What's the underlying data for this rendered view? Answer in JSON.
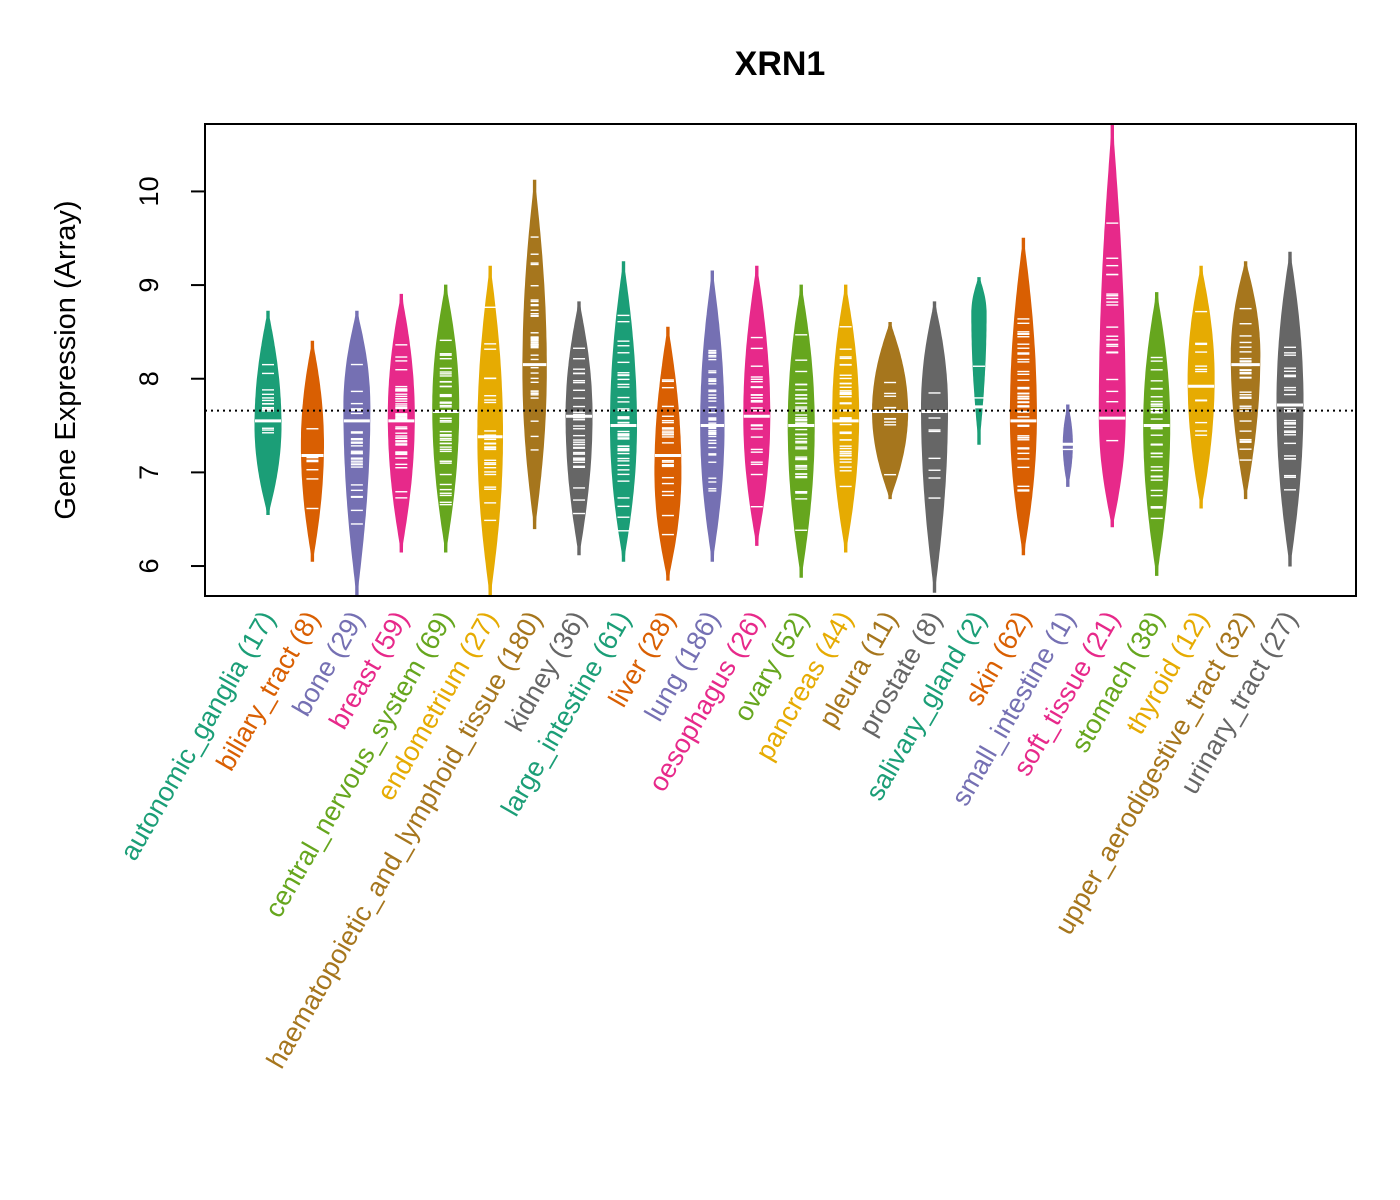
{
  "chart_data": {
    "type": "violin",
    "title": "XRN1",
    "xlabel": "",
    "ylabel": "Gene Expression (Array)",
    "ylim": [
      5.68,
      10.72
    ],
    "yticks": [
      6,
      7,
      8,
      9,
      10
    ],
    "reference_line": 7.66,
    "reference_style": "dotted",
    "grid": false,
    "legend": "none",
    "series": [
      {
        "name": "autonomic_ganglia",
        "label": "autonomic_ganglia (17)",
        "count": 17,
        "color": "#1B9E77",
        "min": 6.55,
        "max": 8.72,
        "median": 7.55,
        "peak": 7.5,
        "width": 1.0
      },
      {
        "name": "biliary_tract",
        "label": "biliary_tract (8)",
        "count": 8,
        "color": "#D95F02",
        "min": 6.05,
        "max": 8.4,
        "median": 7.18,
        "peak": 7.3,
        "width": 0.85
      },
      {
        "name": "bone",
        "label": "bone (29)",
        "count": 29,
        "color": "#7570B3",
        "min": 5.68,
        "max": 8.72,
        "median": 7.55,
        "peak": 7.7,
        "width": 1.0
      },
      {
        "name": "breast",
        "label": "breast (59)",
        "count": 59,
        "color": "#E7298A",
        "min": 6.15,
        "max": 8.9,
        "median": 7.55,
        "peak": 7.6,
        "width": 1.0
      },
      {
        "name": "central_nervous_system",
        "label": "central_nervous_system (69)",
        "count": 69,
        "color": "#66A61E",
        "min": 6.15,
        "max": 9.0,
        "median": 7.65,
        "peak": 7.7,
        "width": 1.0
      },
      {
        "name": "endometrium",
        "label": "endometrium (27)",
        "count": 27,
        "color": "#E6AB02",
        "min": 5.68,
        "max": 9.2,
        "median": 7.38,
        "peak": 7.4,
        "width": 0.95
      },
      {
        "name": "haematopoietic_and_lymphoid_tissue",
        "label": "haematopoietic_and_lymphoid_tissue (180)",
        "count": 180,
        "color": "#A6761D",
        "min": 6.4,
        "max": 10.12,
        "median": 8.15,
        "peak": 8.1,
        "width": 0.9
      },
      {
        "name": "kidney",
        "label": "kidney (36)",
        "count": 36,
        "color": "#666666",
        "min": 6.12,
        "max": 8.82,
        "median": 7.6,
        "peak": 7.6,
        "width": 1.0
      },
      {
        "name": "large_intestine",
        "label": "large_intestine (61)",
        "count": 61,
        "color": "#1B9E77",
        "min": 6.05,
        "max": 9.25,
        "median": 7.5,
        "peak": 7.5,
        "width": 1.0
      },
      {
        "name": "liver",
        "label": "liver (28)",
        "count": 28,
        "color": "#D95F02",
        "min": 5.85,
        "max": 8.55,
        "median": 7.18,
        "peak": 7.0,
        "width": 1.0
      },
      {
        "name": "lung",
        "label": "lung (186)",
        "count": 186,
        "color": "#7570B3",
        "min": 6.05,
        "max": 9.15,
        "median": 7.5,
        "peak": 7.5,
        "width": 0.9
      },
      {
        "name": "oesophagus",
        "label": "oesophagus (26)",
        "count": 26,
        "color": "#E7298A",
        "min": 6.22,
        "max": 9.2,
        "median": 7.6,
        "peak": 7.6,
        "width": 1.0
      },
      {
        "name": "ovary",
        "label": "ovary (52)",
        "count": 52,
        "color": "#66A61E",
        "min": 5.88,
        "max": 9.0,
        "median": 7.5,
        "peak": 7.5,
        "width": 1.0
      },
      {
        "name": "pancreas",
        "label": "pancreas (44)",
        "count": 44,
        "color": "#E6AB02",
        "min": 6.15,
        "max": 9.0,
        "median": 7.55,
        "peak": 7.6,
        "width": 1.0
      },
      {
        "name": "pleura",
        "label": "pleura (11)",
        "count": 11,
        "color": "#A6761D",
        "min": 6.72,
        "max": 8.6,
        "median": 7.65,
        "peak": 7.65,
        "width": 1.35
      },
      {
        "name": "prostate",
        "label": "prostate (8)",
        "count": 8,
        "color": "#666666",
        "min": 5.72,
        "max": 8.82,
        "median": 7.65,
        "peak": 7.7,
        "width": 1.0
      },
      {
        "name": "salivary_gland",
        "label": "salivary_gland (2)",
        "count": 2,
        "color": "#1B9E77",
        "min": 7.3,
        "max": 9.08,
        "median": 7.7,
        "peak": 8.7,
        "width": 0.55
      },
      {
        "name": "skin",
        "label": "skin (62)",
        "count": 62,
        "color": "#D95F02",
        "min": 6.12,
        "max": 9.5,
        "median": 7.55,
        "peak": 7.6,
        "width": 1.0
      },
      {
        "name": "small_intestine",
        "label": "small_intestine (1)",
        "count": 1,
        "color": "#7570B3",
        "min": 6.85,
        "max": 7.72,
        "median": 7.3,
        "peak": 7.3,
        "width": 0.35
      },
      {
        "name": "soft_tissue",
        "label": "soft_tissue (21)",
        "count": 21,
        "color": "#E7298A",
        "min": 6.42,
        "max": 10.72,
        "median": 7.58,
        "peak": 7.6,
        "width": 1.0
      },
      {
        "name": "stomach",
        "label": "stomach (38)",
        "count": 38,
        "color": "#66A61E",
        "min": 5.9,
        "max": 8.92,
        "median": 7.5,
        "peak": 7.5,
        "width": 1.0
      },
      {
        "name": "thyroid",
        "label": "thyroid (12)",
        "count": 12,
        "color": "#E6AB02",
        "min": 6.62,
        "max": 9.2,
        "median": 7.92,
        "peak": 8.0,
        "width": 1.0
      },
      {
        "name": "upper_aerodigestive_tract",
        "label": "upper_aerodigestive_tract (32)",
        "count": 32,
        "color": "#A6761D",
        "min": 6.72,
        "max": 9.25,
        "median": 8.15,
        "peak": 8.25,
        "width": 1.1
      },
      {
        "name": "urinary_tract",
        "label": "urinary_tract (27)",
        "count": 27,
        "color": "#666666",
        "min": 6.0,
        "max": 9.35,
        "median": 7.72,
        "peak": 7.75,
        "width": 1.0
      }
    ]
  }
}
